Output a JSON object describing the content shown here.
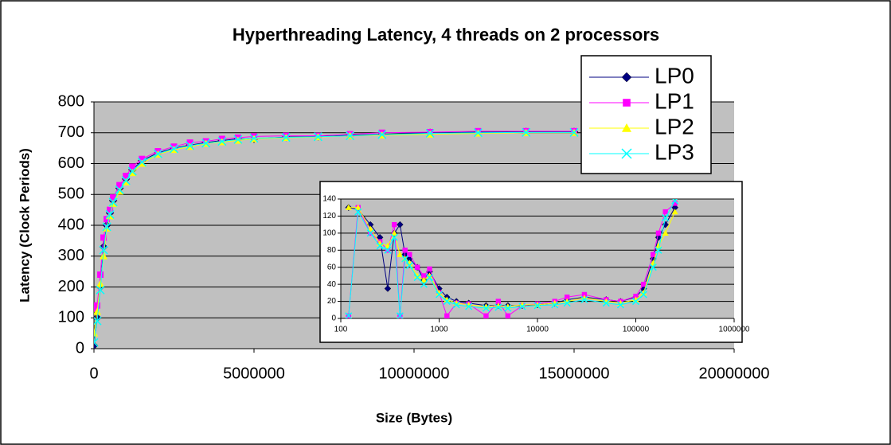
{
  "chart_data": [
    {
      "type": "line",
      "title": "Hyperthreading Latency, 4 threads on 2 processors",
      "xlabel": "Size (Bytes)",
      "ylabel": "Latency (Clock Periods)",
      "x": [
        0,
        100000,
        200000,
        300000,
        400000,
        500000,
        600000,
        800000,
        1000000,
        1200000,
        1500000,
        2000000,
        2500000,
        3000000,
        3500000,
        4000000,
        4500000,
        5000000,
        6000000,
        7000000,
        8000000,
        9000000,
        10500000,
        12000000,
        13500000,
        15000000
      ],
      "series": [
        {
          "name": "LP0",
          "color": "#000080",
          "values": [
            10,
            100,
            200,
            330,
            400,
            440,
            480,
            520,
            550,
            580,
            610,
            635,
            650,
            660,
            668,
            675,
            680,
            680,
            686,
            688,
            692,
            695,
            700,
            702,
            703,
            703
          ]
        },
        {
          "name": "LP1",
          "color": "#ff00ff",
          "values": [
            130,
            140,
            240,
            360,
            420,
            450,
            490,
            530,
            560,
            590,
            615,
            640,
            655,
            668,
            672,
            680,
            684,
            688,
            690,
            690,
            695,
            700,
            702,
            705,
            705,
            705
          ]
        },
        {
          "name": "LP2",
          "color": "#ffff00",
          "values": [
            50,
            120,
            210,
            300,
            390,
            430,
            470,
            510,
            540,
            570,
            600,
            630,
            645,
            655,
            665,
            670,
            675,
            680,
            684,
            686,
            690,
            692,
            695,
            698,
            700,
            700
          ]
        },
        {
          "name": "LP3",
          "color": "#00ffff",
          "values": [
            20,
            90,
            190,
            320,
            395,
            435,
            475,
            515,
            545,
            575,
            605,
            632,
            648,
            658,
            666,
            672,
            678,
            682,
            685,
            687,
            690,
            694,
            698,
            700,
            701,
            701
          ]
        }
      ],
      "xlim": [
        0,
        20000000
      ],
      "xticks": [
        0,
        5000000,
        10000000,
        15000000,
        20000000
      ],
      "ylim": [
        0,
        800
      ],
      "yticks": [
        0,
        100,
        200,
        300,
        400,
        500,
        600,
        700,
        800
      ],
      "grid": true,
      "legend": "top-right"
    },
    {
      "type": "line",
      "xscale": "log",
      "x": [
        120,
        150,
        200,
        250,
        300,
        350,
        400,
        450,
        500,
        600,
        700,
        800,
        1000,
        1200,
        1500,
        2000,
        3000,
        4000,
        5000,
        7000,
        10000,
        15000,
        20000,
        30000,
        50000,
        70000,
        100000,
        120000,
        150000,
        170000,
        200000,
        250000
      ],
      "series": [
        {
          "color": "#000080",
          "values": [
            130,
            128,
            110,
            95,
            35,
            100,
            110,
            75,
            70,
            60,
            45,
            55,
            35,
            25,
            20,
            18,
            15,
            15,
            15,
            15,
            16,
            18,
            22,
            25,
            22,
            20,
            25,
            35,
            70,
            95,
            110,
            130
          ]
        },
        {
          "color": "#ff00ff",
          "values": [
            3,
            130,
            100,
            90,
            80,
            110,
            3,
            80,
            75,
            60,
            50,
            58,
            30,
            3,
            18,
            17,
            3,
            20,
            3,
            15,
            17,
            20,
            25,
            28,
            22,
            20,
            26,
            40,
            75,
            100,
            125,
            135
          ]
        },
        {
          "color": "#ffff00",
          "values": [
            130,
            130,
            105,
            88,
            85,
            100,
            75,
            70,
            65,
            50,
            45,
            50,
            30,
            22,
            18,
            16,
            14,
            15,
            14,
            16,
            16,
            18,
            20,
            24,
            20,
            18,
            22,
            30,
            65,
            85,
            100,
            125
          ]
        },
        {
          "color": "#00ffff",
          "values": [
            3,
            125,
            100,
            85,
            80,
            95,
            3,
            70,
            62,
            48,
            40,
            48,
            28,
            20,
            16,
            14,
            12,
            13,
            12,
            14,
            15,
            16,
            18,
            22,
            18,
            16,
            20,
            28,
            60,
            80,
            118,
            138
          ]
        }
      ],
      "xlim": [
        100,
        1000000
      ],
      "xticks": [
        100,
        1000,
        10000,
        100000,
        1000000
      ],
      "ylim": [
        0,
        140
      ],
      "yticks": [
        0,
        20,
        40,
        60,
        80,
        100,
        120,
        140
      ],
      "grid": true
    }
  ]
}
